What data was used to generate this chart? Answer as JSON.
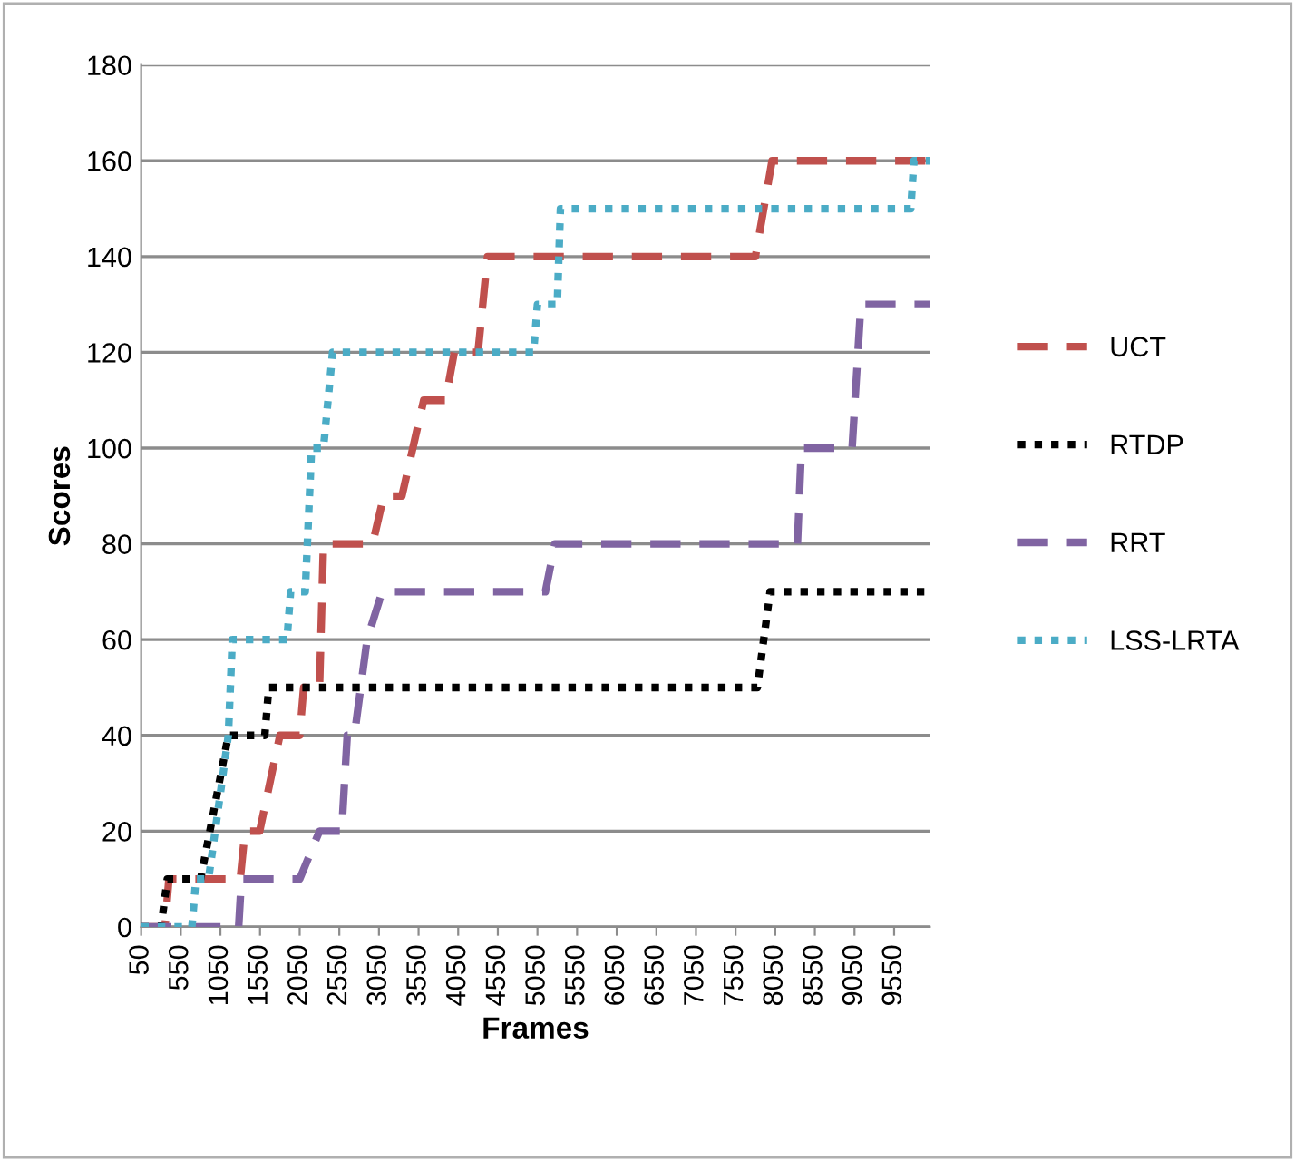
{
  "chart_data": {
    "type": "line",
    "xlabel": "Frames",
    "ylabel": "Scores",
    "xlim": [
      50,
      10000
    ],
    "xticks": [
      50,
      550,
      1050,
      1550,
      2050,
      2550,
      3050,
      3550,
      4050,
      4550,
      5050,
      5550,
      6050,
      6550,
      7050,
      7550,
      8050,
      8550,
      9050,
      9550
    ],
    "ylim": [
      0,
      180
    ],
    "yticks": [
      0,
      20,
      40,
      60,
      80,
      100,
      120,
      140,
      160,
      180
    ],
    "grid": "y",
    "legend": "right",
    "marker": "none",
    "series": [
      {
        "name": "UCT",
        "color": "#c0504d",
        "line_style": "dashed",
        "x": [
          50,
          350,
          400,
          1300,
          1360,
          1545,
          1800,
          2050,
          2100,
          2300,
          2350,
          2970,
          3110,
          3340,
          3615,
          3890,
          4000,
          4300,
          4420,
          7800,
          8010,
          10000
        ],
        "values": [
          0,
          0,
          10,
          10,
          20,
          20,
          40,
          40,
          50,
          50,
          80,
          80,
          90,
          90,
          110,
          110,
          120,
          120,
          140,
          140,
          160,
          160
        ]
      },
      {
        "name": "RTDP",
        "color": "#000000",
        "line_style": "dotted",
        "x": [
          50,
          300,
          380,
          800,
          1150,
          1610,
          1660,
          7824,
          7985,
          10000
        ],
        "values": [
          0,
          0,
          10,
          10,
          40,
          40,
          50,
          50,
          70,
          70
        ]
      },
      {
        "name": "RRT",
        "color": "#8064a2",
        "line_style": "dashed",
        "x": [
          50,
          1280,
          1315,
          2050,
          2300,
          2580,
          2650,
          2740,
          2900,
          3090,
          5150,
          5270,
          8330,
          8380,
          9020,
          9130,
          10000
        ],
        "values": [
          0,
          0,
          10,
          10,
          20,
          20,
          40,
          40,
          60,
          70,
          70,
          80,
          80,
          100,
          100,
          130,
          130
        ]
      },
      {
        "name": "LSS-LRTA",
        "color": "#4bacc6",
        "line_style": "dotted",
        "x": [
          50,
          690,
          740,
          900,
          1150,
          1200,
          1890,
          1935,
          2120,
          2200,
          2350,
          2465,
          5000,
          5050,
          5300,
          5340,
          9760,
          9800,
          10000
        ],
        "values": [
          0,
          0,
          10,
          10,
          40,
          60,
          60,
          70,
          70,
          100,
          100,
          120,
          120,
          130,
          130,
          150,
          150,
          160,
          160
        ]
      }
    ]
  }
}
